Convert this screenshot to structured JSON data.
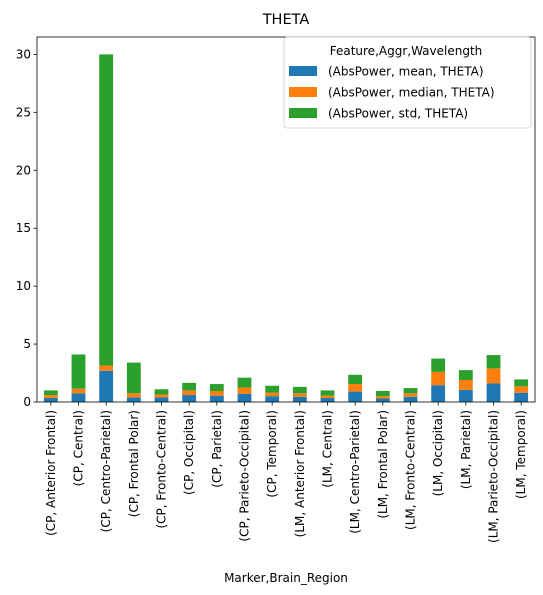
{
  "chart_data": {
    "type": "bar",
    "stacked": true,
    "title": "THETA",
    "xlabel": "Marker,Brain_Region",
    "ylabel": "",
    "ylim": [
      0,
      31.5
    ],
    "yticks": [
      0,
      5,
      10,
      15,
      20,
      25,
      30
    ],
    "legend": {
      "title": "Feature,Aggr,Wavelength",
      "placement": "top-right"
    },
    "categories": [
      "(CP, Anterior Frontal)",
      "(CP, Central)",
      "(CP, Centro-Parietal)",
      "(CP, Frontal Polar)",
      "(CP, Fronto-Central)",
      "(CP, Occipital)",
      "(CP, Parietal)",
      "(CP, Parieto-Occipital)",
      "(CP, Temporal)",
      "(LM, Anterior Frontal)",
      "(LM, Central)",
      "(LM, Centro-Parietal)",
      "(LM, Frontal Polar)",
      "(LM, Fronto-Central)",
      "(LM, Occipital)",
      "(LM, Parietal)",
      "(LM, Parieto-Occipital)",
      "(LM, Temporal)"
    ],
    "series": [
      {
        "name": "(AbsPower, mean, THETA)",
        "color": "#1f77b4",
        "values": [
          0.35,
          0.75,
          2.7,
          0.4,
          0.4,
          0.6,
          0.55,
          0.7,
          0.5,
          0.45,
          0.35,
          0.9,
          0.3,
          0.45,
          1.45,
          1.05,
          1.6,
          0.8
        ]
      },
      {
        "name": "(AbsPower, median, THETA)",
        "color": "#ff7f0e",
        "values": [
          0.25,
          0.4,
          0.45,
          0.35,
          0.25,
          0.4,
          0.4,
          0.55,
          0.3,
          0.3,
          0.2,
          0.65,
          0.2,
          0.3,
          1.15,
          0.85,
          1.3,
          0.55
        ]
      },
      {
        "name": "(AbsPower, std, THETA)",
        "color": "#2ca02c",
        "values": [
          0.4,
          2.95,
          26.85,
          2.65,
          0.45,
          0.65,
          0.6,
          0.85,
          0.6,
          0.55,
          0.45,
          0.8,
          0.45,
          0.45,
          1.15,
          0.85,
          1.15,
          0.6
        ]
      }
    ]
  }
}
